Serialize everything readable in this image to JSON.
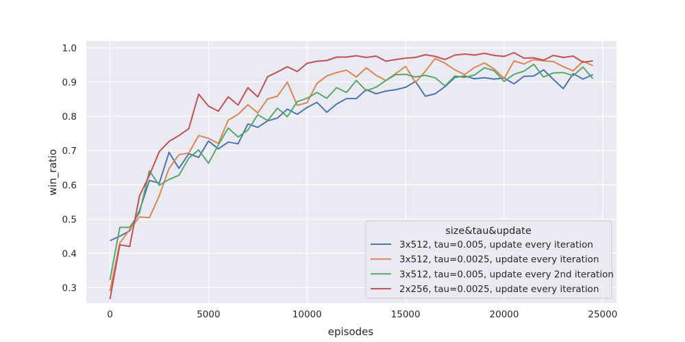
{
  "chart_data": {
    "type": "line",
    "xlabel": "episodes",
    "ylabel": "win_ratio",
    "xlim": [
      -1200,
      25700
    ],
    "ylim": [
      0.255,
      1.02
    ],
    "xticks": [
      0,
      5000,
      10000,
      15000,
      20000,
      25000
    ],
    "yticks": [
      0.3,
      0.4,
      0.5,
      0.6,
      0.7,
      0.8,
      0.9,
      1.0
    ],
    "grid": true,
    "style": "seaborn darkgrid",
    "background_color": "#eaeaf2",
    "legend": {
      "title": "size&tau&update",
      "placement": "bottom-right"
    },
    "x": [
      0,
      500,
      1000,
      1500,
      2000,
      2500,
      3000,
      3500,
      4000,
      4500,
      5000,
      5500,
      6000,
      6500,
      7000,
      7500,
      8000,
      8500,
      9000,
      9500,
      10000,
      10500,
      11000,
      11500,
      12000,
      12500,
      13000,
      13500,
      14000,
      14500,
      15000,
      15500,
      16000,
      16500,
      17000,
      17500,
      18000,
      18500,
      19000,
      19500,
      20000,
      20500,
      21000,
      21500,
      22000,
      22500,
      23000,
      23500,
      24000,
      24500
    ],
    "series": [
      {
        "name": "3x512, tau=0.005, update every iteration",
        "color": "#4c72b0",
        "values": [
          0.437,
          0.45,
          0.466,
          0.525,
          0.613,
          0.605,
          0.695,
          0.648,
          0.691,
          0.68,
          0.728,
          0.705,
          0.725,
          0.72,
          0.778,
          0.768,
          0.787,
          0.795,
          0.821,
          0.806,
          0.826,
          0.841,
          0.812,
          0.836,
          0.852,
          0.852,
          0.878,
          0.866,
          0.874,
          0.878,
          0.885,
          0.902,
          0.859,
          0.866,
          0.887,
          0.914,
          0.918,
          0.91,
          0.913,
          0.909,
          0.912,
          0.895,
          0.917,
          0.918,
          0.936,
          0.908,
          0.881,
          0.925,
          0.909,
          0.922
        ]
      },
      {
        "name": "3x512, tau=0.0025, update every iteration",
        "color": "#dd8452",
        "values": [
          0.29,
          0.43,
          0.47,
          0.506,
          0.504,
          0.568,
          0.648,
          0.688,
          0.693,
          0.744,
          0.736,
          0.721,
          0.789,
          0.806,
          0.834,
          0.81,
          0.851,
          0.859,
          0.9,
          0.832,
          0.84,
          0.896,
          0.918,
          0.928,
          0.935,
          0.915,
          0.942,
          0.92,
          0.905,
          0.925,
          0.946,
          0.899,
          0.932,
          0.969,
          0.955,
          0.936,
          0.922,
          0.943,
          0.956,
          0.938,
          0.911,
          0.962,
          0.953,
          0.966,
          0.962,
          0.96,
          0.945,
          0.933,
          0.961,
          0.948
        ]
      },
      {
        "name": "3x512, tau=0.005, update every 2nd iteration",
        "color": "#55a868",
        "values": [
          0.322,
          0.476,
          0.476,
          0.518,
          0.641,
          0.599,
          0.616,
          0.628,
          0.678,
          0.702,
          0.663,
          0.717,
          0.766,
          0.74,
          0.76,
          0.805,
          0.788,
          0.824,
          0.799,
          0.843,
          0.853,
          0.87,
          0.853,
          0.884,
          0.87,
          0.905,
          0.875,
          0.885,
          0.905,
          0.922,
          0.923,
          0.915,
          0.92,
          0.913,
          0.889,
          0.918,
          0.914,
          0.921,
          0.942,
          0.933,
          0.902,
          0.923,
          0.932,
          0.952,
          0.915,
          0.927,
          0.928,
          0.919,
          0.944,
          0.91
        ]
      },
      {
        "name": "2x256, tau=0.0025, update every iteration",
        "color": "#c44e52",
        "values": [
          0.266,
          0.425,
          0.42,
          0.568,
          0.628,
          0.697,
          0.727,
          0.744,
          0.764,
          0.865,
          0.83,
          0.815,
          0.857,
          0.833,
          0.884,
          0.857,
          0.916,
          0.93,
          0.945,
          0.931,
          0.955,
          0.961,
          0.963,
          0.973,
          0.973,
          0.977,
          0.972,
          0.976,
          0.961,
          0.966,
          0.97,
          0.972,
          0.98,
          0.975,
          0.966,
          0.979,
          0.982,
          0.979,
          0.984,
          0.978,
          0.975,
          0.986,
          0.97,
          0.971,
          0.964,
          0.978,
          0.972,
          0.976,
          0.958,
          0.962
        ]
      }
    ]
  }
}
